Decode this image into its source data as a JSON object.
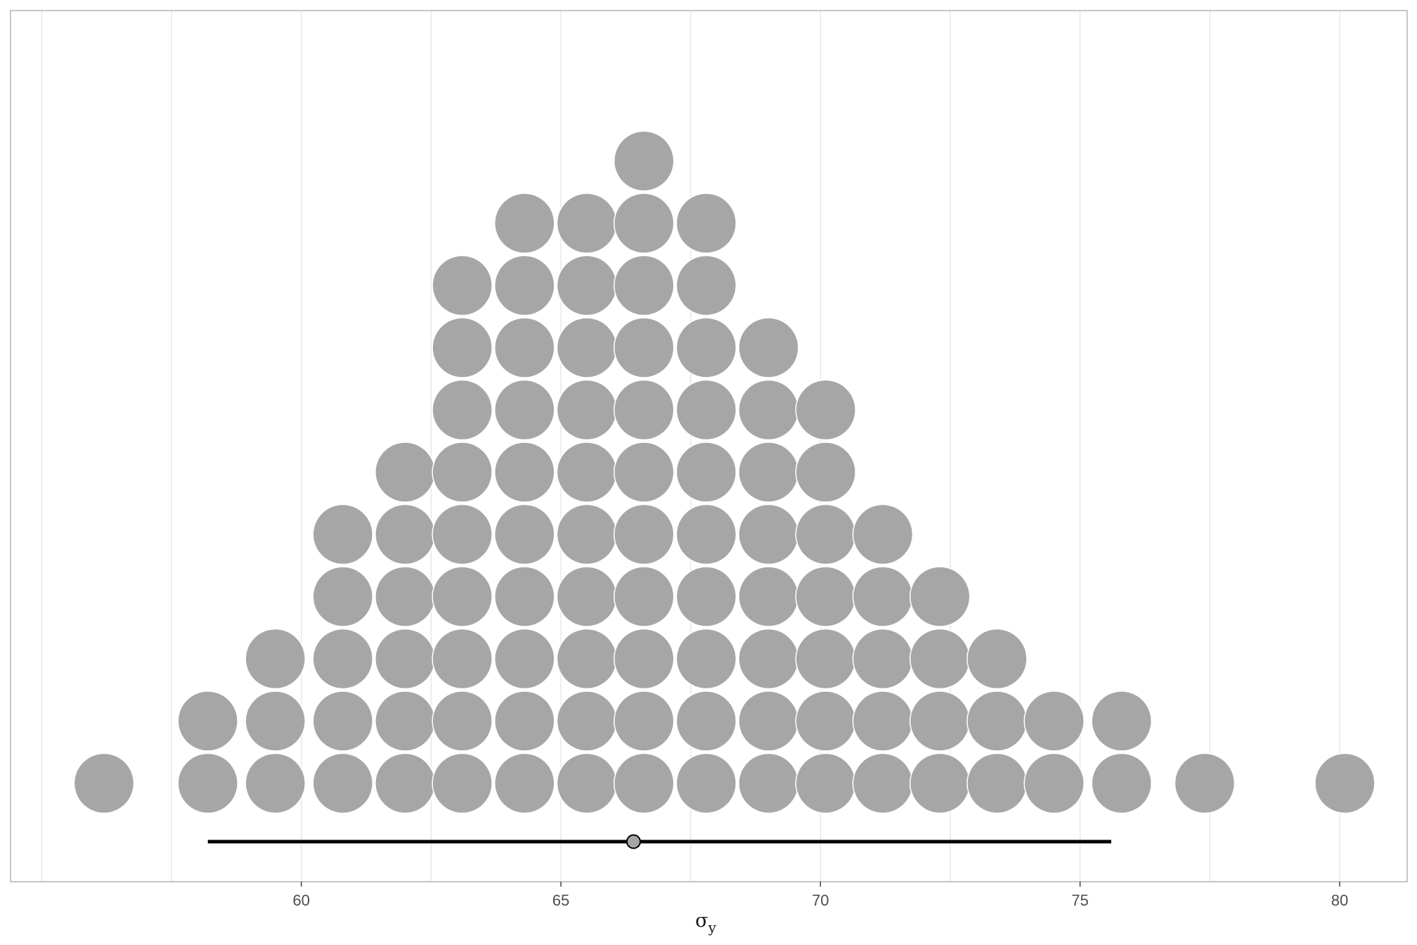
{
  "chart_data": {
    "type": "dotplot",
    "xlabel": "σ",
    "xlabel_subscript": "y",
    "xlim": [
      54.4,
      81.3
    ],
    "xticks": [
      60,
      65,
      70,
      75,
      80
    ],
    "xtick_labels": [
      "60",
      "65",
      "70",
      "75",
      "80"
    ],
    "grid": "vertical major and minor",
    "colors": {
      "dot_fill": "#a6a6a6",
      "interval": "#000000",
      "point_fill": "#a6a6a6",
      "grid": "#e6e6e6",
      "panel_border": "#b3b3b3"
    },
    "dots": [
      {
        "x": 56.2,
        "count": 1
      },
      {
        "x": 58.2,
        "count": 2
      },
      {
        "x": 59.5,
        "count": 3
      },
      {
        "x": 60.8,
        "count": 5
      },
      {
        "x": 62.0,
        "count": 6
      },
      {
        "x": 63.1,
        "count": 9
      },
      {
        "x": 64.3,
        "count": 10
      },
      {
        "x": 65.5,
        "count": 10
      },
      {
        "x": 66.6,
        "count": 11
      },
      {
        "x": 67.8,
        "count": 10
      },
      {
        "x": 69.0,
        "count": 8
      },
      {
        "x": 70.1,
        "count": 7
      },
      {
        "x": 71.2,
        "count": 5
      },
      {
        "x": 72.3,
        "count": 4
      },
      {
        "x": 73.4,
        "count": 3
      },
      {
        "x": 74.5,
        "count": 2
      },
      {
        "x": 75.8,
        "count": 2
      },
      {
        "x": 77.4,
        "count": 1
      },
      {
        "x": 80.1,
        "count": 1
      }
    ],
    "interval": {
      "low": 58.2,
      "high": 75.6,
      "point": 66.4
    }
  }
}
